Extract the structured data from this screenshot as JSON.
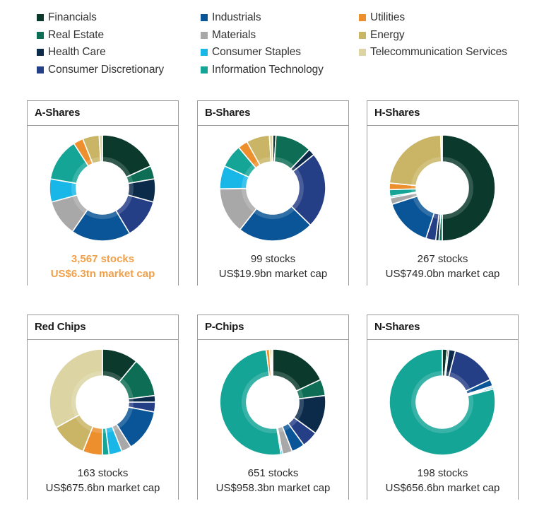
{
  "legend": [
    {
      "name": "Financials",
      "color": "#0b3a2c"
    },
    {
      "name": "Real Estate",
      "color": "#0d6e55"
    },
    {
      "name": "Health Care",
      "color": "#0c2a4a"
    },
    {
      "name": "Consumer Discretionary",
      "color": "#253f86"
    },
    {
      "name": "Industrials",
      "color": "#0a5597"
    },
    {
      "name": "Materials",
      "color": "#a8a8a8"
    },
    {
      "name": "Consumer Staples",
      "color": "#18b7e8"
    },
    {
      "name": "Information Technology",
      "color": "#14a597"
    },
    {
      "name": "Utilities",
      "color": "#ee8f2e"
    },
    {
      "name": "Energy",
      "color": "#c9b565"
    },
    {
      "name": "Telecommunication Services",
      "color": "#dcd4a3"
    }
  ],
  "chart_data": [
    {
      "type": "pie",
      "title": "A-Shares",
      "caption": [
        "3,567 stocks",
        "US$6.3tn market cap"
      ],
      "highlight": true,
      "slices": [
        {
          "label": "Financials",
          "value": 18
        },
        {
          "label": "Real Estate",
          "value": 4
        },
        {
          "label": "Health Care",
          "value": 7
        },
        {
          "label": "Consumer Discretionary",
          "value": 12
        },
        {
          "label": "Industrials",
          "value": 18
        },
        {
          "label": "Materials",
          "value": 11
        },
        {
          "label": "Consumer Staples",
          "value": 7
        },
        {
          "label": "Information Technology",
          "value": 13
        },
        {
          "label": "Utilities",
          "value": 3
        },
        {
          "label": "Energy",
          "value": 5
        },
        {
          "label": "Telecommunication Services",
          "value": 1
        }
      ]
    },
    {
      "type": "pie",
      "title": "B-Shares",
      "caption": [
        "99 stocks",
        "US$19.9bn market cap"
      ],
      "highlight": false,
      "slices": [
        {
          "label": "Financials",
          "value": 1
        },
        {
          "label": "Real Estate",
          "value": 11
        },
        {
          "label": "Health Care",
          "value": 2
        },
        {
          "label": "Consumer Discretionary",
          "value": 23
        },
        {
          "label": "Industrials",
          "value": 23
        },
        {
          "label": "Materials",
          "value": 14
        },
        {
          "label": "Consumer Staples",
          "value": 7
        },
        {
          "label": "Information Technology",
          "value": 7
        },
        {
          "label": "Utilities",
          "value": 3
        },
        {
          "label": "Energy",
          "value": 7
        },
        {
          "label": "Telecommunication Services",
          "value": 1
        }
      ]
    },
    {
      "type": "pie",
      "title": "H-Shares",
      "caption": [
        "267 stocks",
        "US$749.0bn market cap"
      ],
      "highlight": false,
      "slices": [
        {
          "label": "Financials",
          "value": 50
        },
        {
          "label": "Real Estate",
          "value": 1
        },
        {
          "label": "Health Care",
          "value": 1
        },
        {
          "label": "Consumer Discretionary",
          "value": 3
        },
        {
          "label": "Industrials",
          "value": 15
        },
        {
          "label": "Materials",
          "value": 2
        },
        {
          "label": "Consumer Staples",
          "value": 0.5
        },
        {
          "label": "Information Technology",
          "value": 2
        },
        {
          "label": "Utilities",
          "value": 2
        },
        {
          "label": "Energy",
          "value": 23
        },
        {
          "label": "Telecommunication Services",
          "value": 0.5
        }
      ]
    },
    {
      "type": "pie",
      "title": "Red Chips",
      "caption": [
        "163 stocks",
        "US$675.6bn market cap"
      ],
      "highlight": false,
      "slices": [
        {
          "label": "Financials",
          "value": 11
        },
        {
          "label": "Real Estate",
          "value": 12
        },
        {
          "label": "Health Care",
          "value": 2
        },
        {
          "label": "Consumer Discretionary",
          "value": 3
        },
        {
          "label": "Industrials",
          "value": 13
        },
        {
          "label": "Materials",
          "value": 3
        },
        {
          "label": "Consumer Staples",
          "value": 4
        },
        {
          "label": "Information Technology",
          "value": 2
        },
        {
          "label": "Utilities",
          "value": 6
        },
        {
          "label": "Energy",
          "value": 11
        },
        {
          "label": "Telecommunication Services",
          "value": 33
        }
      ]
    },
    {
      "type": "pie",
      "title": "P-Chips",
      "caption": [
        "651 stocks",
        "US$958.3bn market cap"
      ],
      "highlight": false,
      "slices": [
        {
          "label": "Financials",
          "value": 18
        },
        {
          "label": "Real Estate",
          "value": 5
        },
        {
          "label": "Health Care",
          "value": 12
        },
        {
          "label": "Consumer Discretionary",
          "value": 5
        },
        {
          "label": "Industrials",
          "value": 4
        },
        {
          "label": "Materials",
          "value": 3
        },
        {
          "label": "Consumer Staples",
          "value": 0.5
        },
        {
          "label": "Information Technology",
          "value": 50.5
        },
        {
          "label": "Utilities",
          "value": 1
        },
        {
          "label": "Energy",
          "value": 0.5
        },
        {
          "label": "Telecommunication Services",
          "value": 0.5
        }
      ]
    },
    {
      "type": "pie",
      "title": "N-Shares",
      "caption": [
        "198 stocks",
        "US$656.6bn market cap"
      ],
      "highlight": false,
      "slices": [
        {
          "label": "Financials",
          "value": 1.5
        },
        {
          "label": "Real Estate",
          "value": 0.5
        },
        {
          "label": "Health Care",
          "value": 2
        },
        {
          "label": "Consumer Discretionary",
          "value": 14
        },
        {
          "label": "Industrials",
          "value": 2
        },
        {
          "label": "Materials",
          "value": 0.5
        },
        {
          "label": "Consumer Staples",
          "value": 0.5
        },
        {
          "label": "Information Technology",
          "value": 79
        }
      ]
    }
  ]
}
